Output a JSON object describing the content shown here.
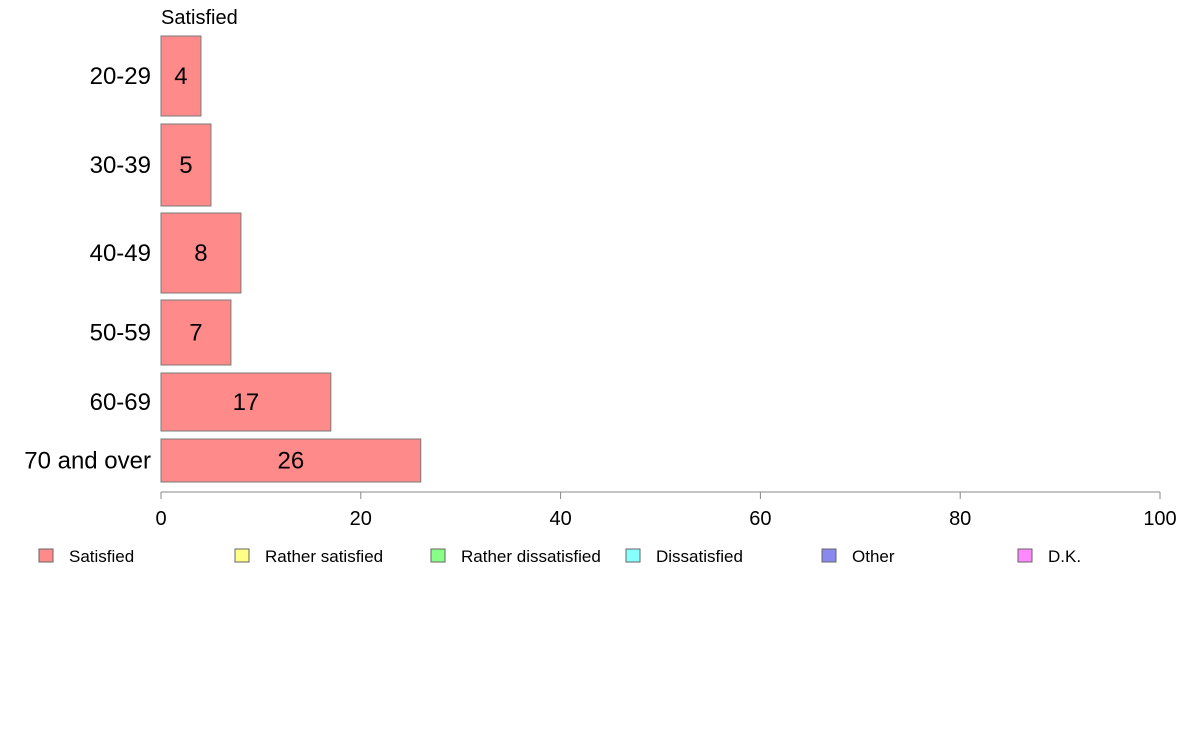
{
  "chart_data": {
    "type": "bar",
    "orientation": "horizontal",
    "title": "Satisfied",
    "categories": [
      "20-29",
      "30-39",
      "40-49",
      "50-59",
      "60-69",
      "70 and over"
    ],
    "series": [
      {
        "name": "Satisfied",
        "color": "#ff8a8a",
        "values": [
          4,
          5,
          8,
          7,
          17,
          26
        ]
      }
    ],
    "xlim": [
      0,
      100
    ],
    "xticks": [
      0,
      20,
      40,
      60,
      80,
      100
    ],
    "xlabel": "",
    "ylabel": "",
    "grid": false,
    "legend_position": "bottom",
    "legend": [
      {
        "label": "Satisfied",
        "color": "#ff8a8a"
      },
      {
        "label": "Rather satisfied",
        "color": "#ffff88"
      },
      {
        "label": "Rather dissatisfied",
        "color": "#88ff88"
      },
      {
        "label": "Dissatisfied",
        "color": "#88ffff"
      },
      {
        "label": "Other",
        "color": "#8888ee"
      },
      {
        "label": "D.K.",
        "color": "#ff88ff"
      }
    ]
  }
}
